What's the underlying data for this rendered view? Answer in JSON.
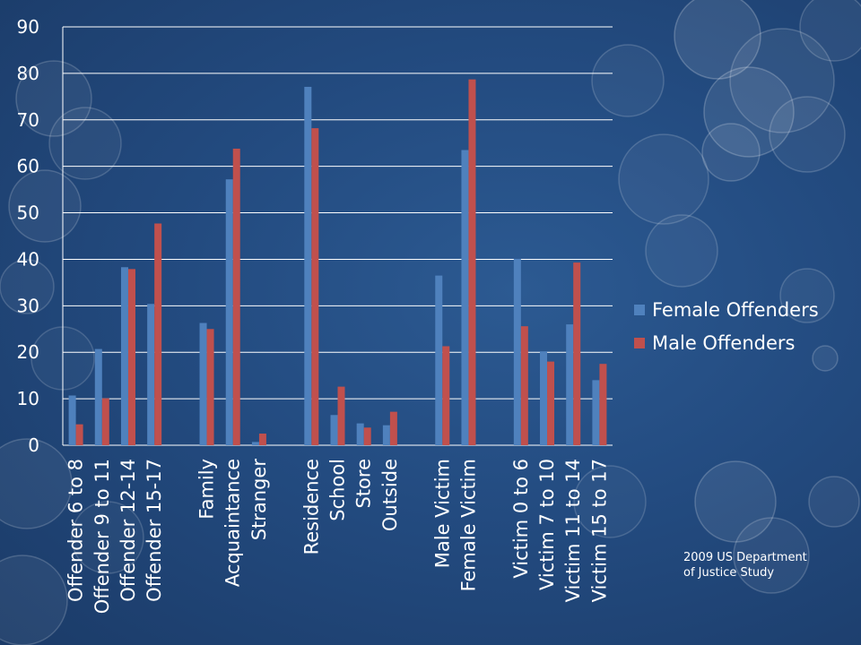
{
  "chart_data": {
    "type": "bar",
    "title": "",
    "xlabel": "",
    "ylabel": "",
    "ylim": [
      0,
      90
    ],
    "yticks": [
      0,
      10,
      20,
      30,
      40,
      50,
      60,
      70,
      80,
      90
    ],
    "grid": true,
    "legend_position": "right",
    "categories": [
      "Offender 6 to 8",
      "Offender 9 to 11",
      "Offender 12-14",
      "Offender 15-17",
      "",
      "Family",
      "Acquaintance",
      "Stranger",
      "",
      "Residence",
      "School",
      "Store",
      "Outside",
      "",
      "Male Victim",
      "Female Victim",
      "",
      "Victim 0 to 6",
      "Victim 7 to 10",
      "Victim 11 to 14",
      "Victim 15 to 17"
    ],
    "series": [
      {
        "name": "Female Offenders",
        "color": "#4f81bd",
        "values": [
          10.7,
          20.7,
          38.3,
          30.4,
          null,
          26.3,
          57.2,
          0.7,
          null,
          77.1,
          6.5,
          4.7,
          4.3,
          null,
          36.5,
          63.5,
          null,
          40.1,
          20.2,
          26.0,
          14.0
        ]
      },
      {
        "name": "Male Offenders",
        "color": "#c0504d",
        "values": [
          4.5,
          10.1,
          37.9,
          47.7,
          null,
          25.0,
          63.8,
          2.5,
          null,
          68.2,
          12.6,
          3.8,
          7.2,
          null,
          21.3,
          78.7,
          null,
          25.6,
          18.0,
          39.3,
          17.5
        ]
      }
    ],
    "source_note": [
      "2009 US Department",
      "of Justice Study"
    ]
  }
}
